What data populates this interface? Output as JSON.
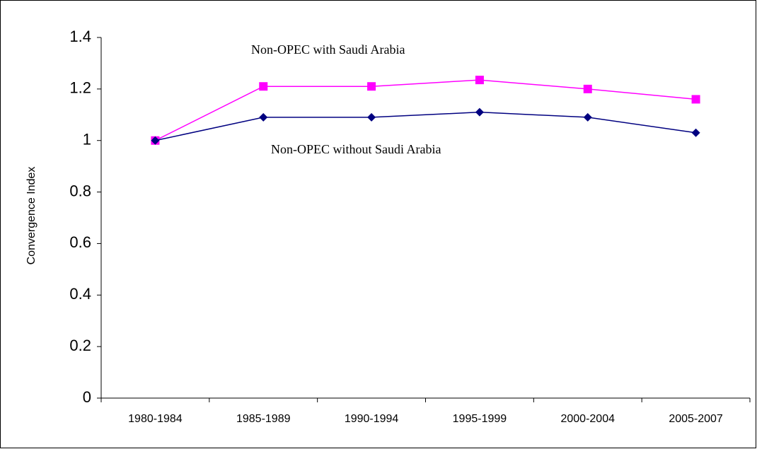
{
  "chart_data": {
    "type": "line",
    "y_label": "Convergence Index",
    "categories": [
      "1980-1984",
      "1985-1989",
      "1990-1994",
      "1995-1999",
      "2000-2004",
      "2005-2007"
    ],
    "series": [
      {
        "name": "Non-OPEC with Saudi Arabia",
        "color": "#ff00ff",
        "marker": "square",
        "values": [
          1.0,
          1.21,
          1.21,
          1.235,
          1.2,
          1.16
        ]
      },
      {
        "name": "Non-OPEC without Saudi Arabia",
        "color": "#000080",
        "marker": "diamond",
        "values": [
          1.0,
          1.09,
          1.09,
          1.11,
          1.09,
          1.03
        ]
      }
    ],
    "ylim": [
      0,
      1.4
    ],
    "yticks": [
      0,
      0.2,
      0.4,
      0.6,
      0.8,
      1,
      1.2,
      1.4
    ],
    "grid": false
  }
}
